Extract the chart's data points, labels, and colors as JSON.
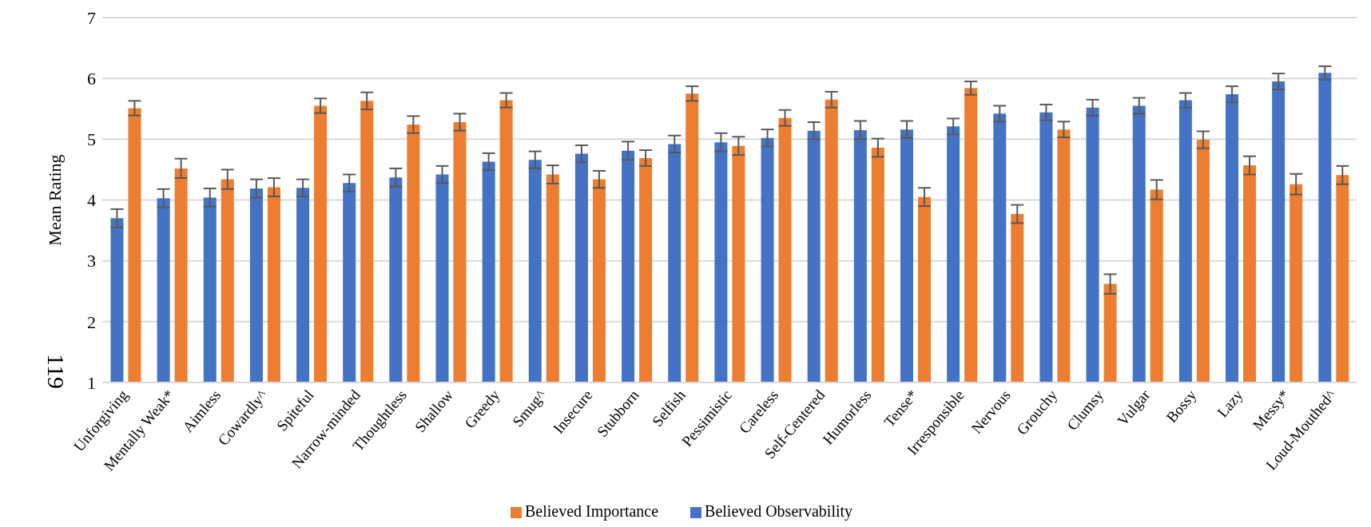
{
  "chart_data": {
    "type": "bar",
    "ylabel": "Mean Rating",
    "annotations": [
      "119"
    ],
    "categories": [
      "Unforgiving",
      "Mentally Weak*",
      "Aimless",
      "Cowardly^",
      "Spiteful",
      "Narrow-minded",
      "Thoughtless",
      "Shallow",
      "Greedy",
      "Smug^",
      "Insecure",
      "Stubborn",
      "Selfish",
      "Pessimistic",
      "Careless",
      "Self-Centered",
      "Humorless",
      "Tense*",
      "Irresponsible",
      "Nervous",
      "Grouchy",
      "Clumsy",
      "Vulgar",
      "Bossy",
      "Lazy",
      "Messy*",
      "Loud-Mouthed^"
    ],
    "series": [
      {
        "name": "Believed Observability",
        "color": "#4472c4",
        "values": [
          3.7,
          4.03,
          4.04,
          4.19,
          4.2,
          4.28,
          4.37,
          4.42,
          4.63,
          4.66,
          4.76,
          4.81,
          4.92,
          4.95,
          5.02,
          5.14,
          5.15,
          5.16,
          5.21,
          5.42,
          5.44,
          5.52,
          5.55,
          5.64,
          5.74,
          5.95,
          6.09
        ],
        "errors": [
          0.15,
          0.15,
          0.15,
          0.15,
          0.14,
          0.14,
          0.15,
          0.14,
          0.14,
          0.14,
          0.14,
          0.15,
          0.14,
          0.15,
          0.14,
          0.14,
          0.15,
          0.14,
          0.13,
          0.13,
          0.13,
          0.13,
          0.13,
          0.12,
          0.13,
          0.13,
          0.11
        ]
      },
      {
        "name": "Believed Importance",
        "color": "#ed7d31",
        "values": [
          5.51,
          4.52,
          4.34,
          4.21,
          5.55,
          5.63,
          5.24,
          5.28,
          5.64,
          4.42,
          4.34,
          4.69,
          5.75,
          4.89,
          5.35,
          5.65,
          4.86,
          4.05,
          5.84,
          3.77,
          5.16,
          2.62,
          4.17,
          4.99,
          4.57,
          4.26,
          4.41
        ],
        "errors": [
          0.12,
          0.16,
          0.16,
          0.15,
          0.12,
          0.14,
          0.14,
          0.14,
          0.12,
          0.15,
          0.14,
          0.13,
          0.12,
          0.15,
          0.13,
          0.13,
          0.15,
          0.15,
          0.11,
          0.15,
          0.13,
          0.16,
          0.16,
          0.14,
          0.15,
          0.17,
          0.15
        ]
      }
    ],
    "ylim": [
      1,
      7
    ],
    "yticks": [
      1,
      2,
      3,
      4,
      5,
      6,
      7
    ],
    "grid": "y",
    "legend": "bottom"
  }
}
